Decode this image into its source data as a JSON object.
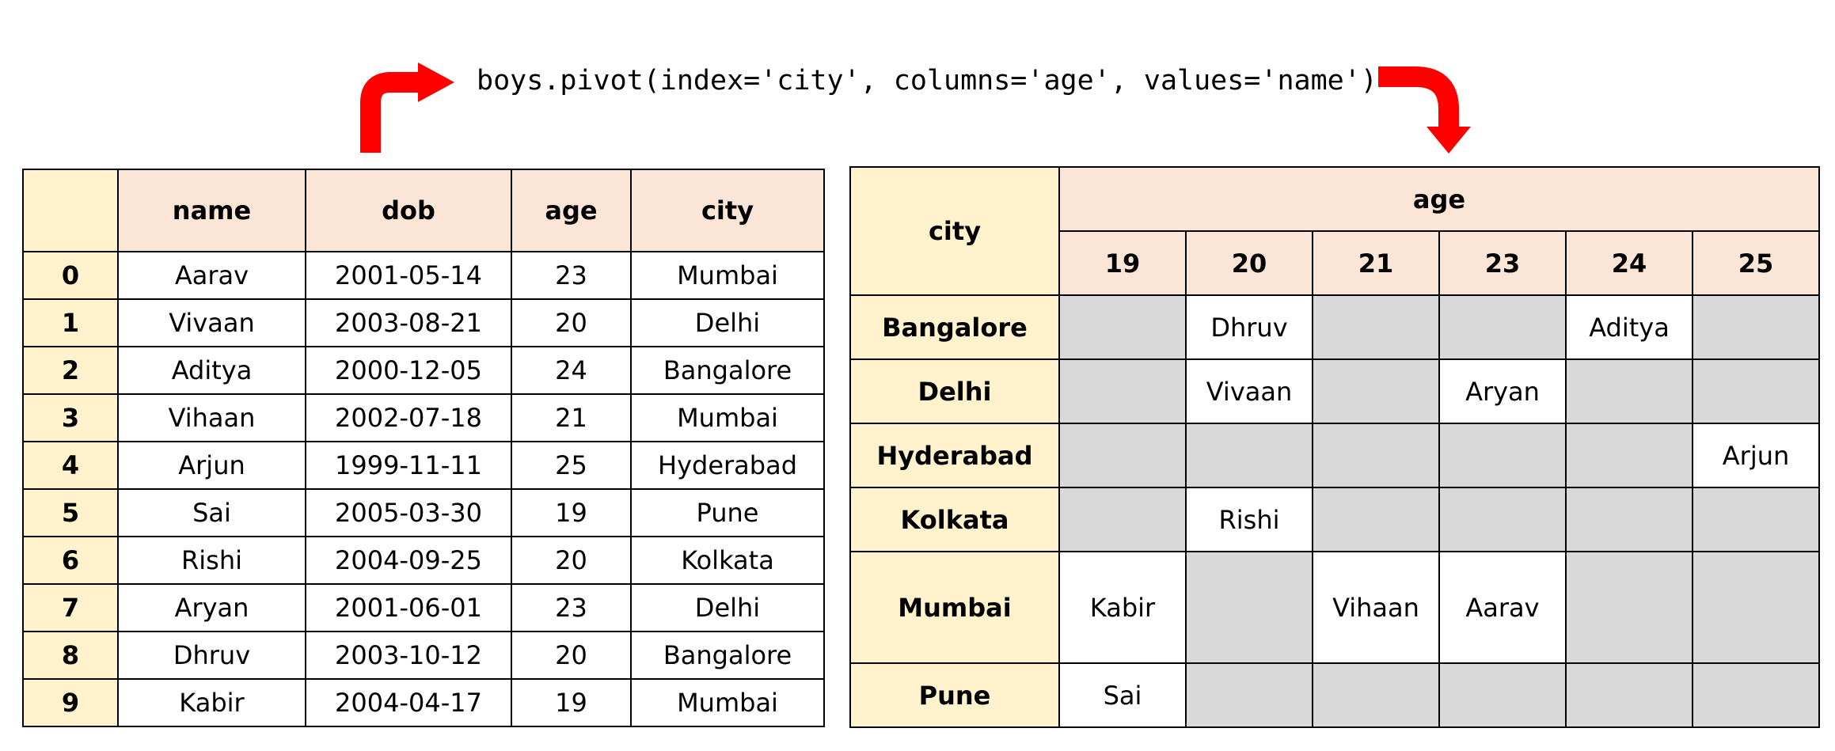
{
  "code": "boys.pivot(index='city', columns='age', values='name')",
  "colors": {
    "arrow": "#ff0000",
    "header_bg": "#fbe5d6",
    "index_bg": "#fff2cc",
    "empty_cell": "#d9d9d9",
    "filled_cell": "#ffffff"
  },
  "icons": {
    "left_arrow": "curved-arrow-up-right-icon",
    "right_arrow": "curved-arrow-right-down-icon"
  },
  "source_table": {
    "columns": [
      "name",
      "dob",
      "age",
      "city"
    ],
    "rows": [
      {
        "index": "0",
        "cells": [
          "Aarav",
          "2001-05-14",
          "23",
          "Mumbai"
        ]
      },
      {
        "index": "1",
        "cells": [
          "Vivaan",
          "2003-08-21",
          "20",
          "Delhi"
        ]
      },
      {
        "index": "2",
        "cells": [
          "Aditya",
          "2000-12-05",
          "24",
          "Bangalore"
        ]
      },
      {
        "index": "3",
        "cells": [
          "Vihaan",
          "2002-07-18",
          "21",
          "Mumbai"
        ]
      },
      {
        "index": "4",
        "cells": [
          "Arjun",
          "1999-11-11",
          "25",
          "Hyderabad"
        ]
      },
      {
        "index": "5",
        "cells": [
          "Sai",
          "2005-03-30",
          "19",
          "Pune"
        ]
      },
      {
        "index": "6",
        "cells": [
          "Rishi",
          "2004-09-25",
          "20",
          "Kolkata"
        ]
      },
      {
        "index": "7",
        "cells": [
          "Aryan",
          "2001-06-01",
          "23",
          "Delhi"
        ]
      },
      {
        "index": "8",
        "cells": [
          "Dhruv",
          "2003-10-12",
          "20",
          "Bangalore"
        ]
      },
      {
        "index": "9",
        "cells": [
          "Kabir",
          "2004-04-17",
          "19",
          "Mumbai"
        ]
      }
    ]
  },
  "pivot_table": {
    "index_label": "city",
    "columns_label": "age",
    "ages": [
      "19",
      "20",
      "21",
      "23",
      "24",
      "25"
    ],
    "rows": [
      {
        "city": "Bangalore",
        "cells": [
          "",
          "Dhruv",
          "",
          "",
          "Aditya",
          ""
        ]
      },
      {
        "city": "Delhi",
        "cells": [
          "",
          "Vivaan",
          "",
          "Aryan",
          "",
          ""
        ]
      },
      {
        "city": "Hyderabad",
        "cells": [
          "",
          "",
          "",
          "",
          "",
          "Arjun"
        ]
      },
      {
        "city": "Kolkata",
        "cells": [
          "",
          "Rishi",
          "",
          "",
          "",
          ""
        ]
      },
      {
        "city": "Mumbai",
        "cells": [
          "Kabir",
          "",
          "Vihaan",
          "Aarav",
          "",
          ""
        ]
      },
      {
        "city": "Pune",
        "cells": [
          "Sai",
          "",
          "",
          "",
          "",
          ""
        ]
      }
    ]
  }
}
